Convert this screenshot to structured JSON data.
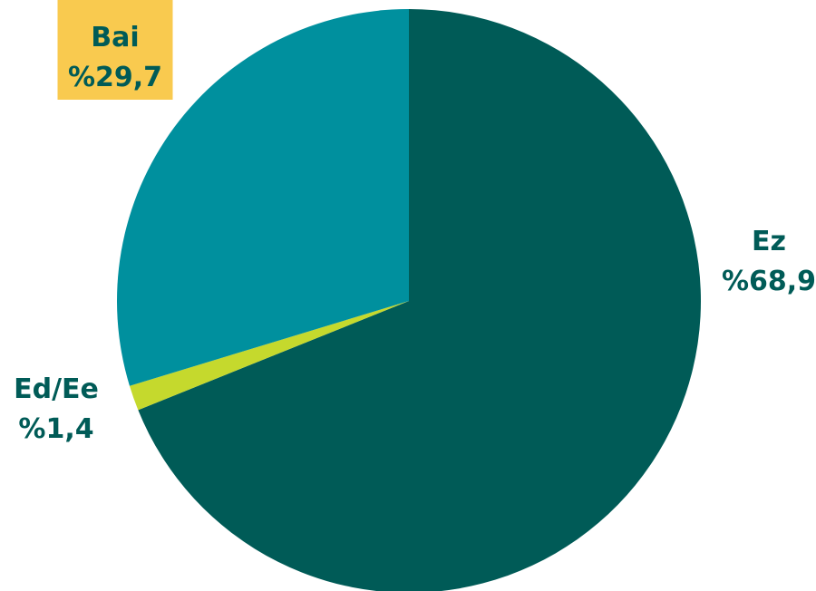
{
  "chart_data": {
    "type": "pie",
    "title": "",
    "start_angle_deg": 0,
    "direction": "clockwise",
    "legend": "none",
    "slices": [
      {
        "id": "ez",
        "label": "Ez",
        "value_text": "%68,9",
        "value": 68.9,
        "color": "#005B57",
        "label_color": "#005B57",
        "label_box_color": ""
      },
      {
        "id": "edee",
        "label": "Ed/Ee",
        "value_text": "%1,4",
        "value": 1.4,
        "color": "#C5D92D",
        "label_color": "#005B57",
        "label_box_color": ""
      },
      {
        "id": "bai",
        "label": "Bai",
        "value_text": "%29,7",
        "value": 29.7,
        "color": "#00909E",
        "label_color": "#005B57",
        "label_box_color": "#F9CA4F"
      }
    ]
  }
}
